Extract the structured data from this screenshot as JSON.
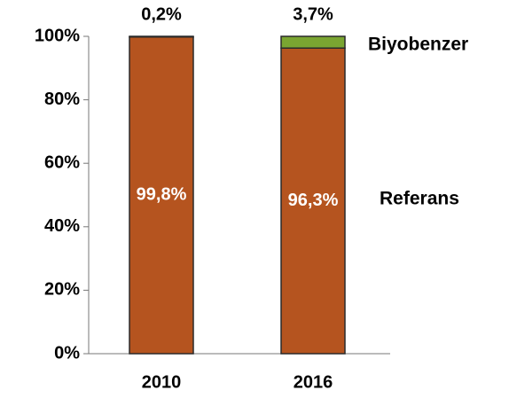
{
  "chart_data": {
    "type": "bar",
    "stacked": true,
    "categories": [
      "2010",
      "2016"
    ],
    "series": [
      {
        "name": "Referans",
        "color": "#b5541f",
        "values": [
          99.8,
          96.3
        ],
        "value_labels": [
          "99,8%",
          "96,3%"
        ]
      },
      {
        "name": "Biyobenzer",
        "color": "#7aa531",
        "values": [
          0.2,
          3.7
        ],
        "value_labels": [
          "0,2%",
          "3,7%"
        ]
      }
    ],
    "ylim": [
      0,
      100
    ],
    "yticks": [
      {
        "value": 0,
        "label": "0%"
      },
      {
        "value": 20,
        "label": "20%"
      },
      {
        "value": 40,
        "label": "40%"
      },
      {
        "value": 60,
        "label": "60%"
      },
      {
        "value": 80,
        "label": "80%"
      },
      {
        "value": 100,
        "label": "100%"
      }
    ]
  }
}
